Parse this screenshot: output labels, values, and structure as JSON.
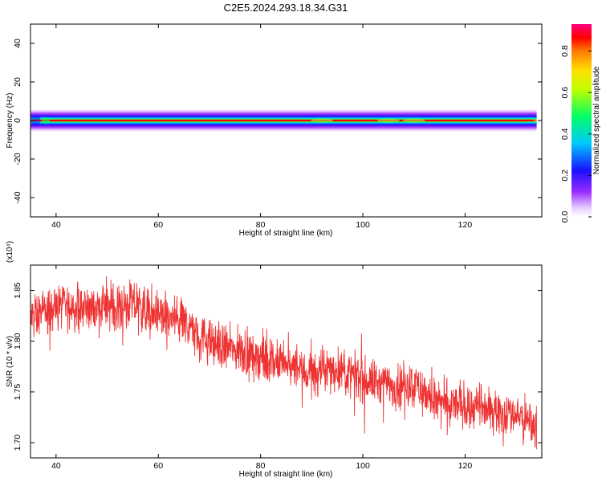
{
  "title": "C2E5.2024.293.18.34.G31",
  "chart_data": [
    {
      "type": "heatmap",
      "title": "C2E5.2024.293.18.34.G31",
      "xlabel": "Height of straight line (km)",
      "ylabel": "Frequency (Hz)",
      "xlim": [
        35,
        135
      ],
      "ylim": [
        -50,
        50
      ],
      "xticks": [
        40,
        60,
        80,
        100,
        120
      ],
      "yticks": [
        -40,
        -20,
        0,
        20,
        40
      ],
      "colorbar": {
        "label": "Normalized spectral amplitude",
        "range": [
          0.0,
          0.93
        ],
        "ticks": [
          0.0,
          0.2,
          0.4,
          0.6,
          0.8
        ],
        "colormap": "rainbow (white-violet-blue-cyan-green-yellow-orange-red-magenta)"
      },
      "description_values": {
        "band_center_hz": 0,
        "band_half_width_hz": 2,
        "x_extent_km": [
          35,
          134
        ],
        "peak_amplitude": 0.93
      }
    },
    {
      "type": "line",
      "xlabel": "Height of straight line (km)",
      "ylabel": "SNR (10 * v/v)",
      "y_multiplier": "(x10⁴)",
      "xlim": [
        35,
        135
      ],
      "ylim": [
        1.685,
        1.875
      ],
      "xticks": [
        40,
        60,
        80,
        100,
        120
      ],
      "yticks": [
        1.7,
        1.75,
        1.8,
        1.85
      ],
      "color": "#ee3333",
      "trend_x": [
        35,
        40,
        45,
        50,
        55,
        60,
        65,
        70,
        75,
        80,
        85,
        90,
        95,
        100,
        105,
        110,
        115,
        120,
        125,
        130,
        134
      ],
      "trend_y": [
        1.822,
        1.834,
        1.833,
        1.833,
        1.836,
        1.826,
        1.818,
        1.799,
        1.791,
        1.785,
        1.775,
        1.768,
        1.773,
        1.762,
        1.757,
        1.758,
        1.738,
        1.737,
        1.732,
        1.728,
        1.715
      ]
    }
  ]
}
